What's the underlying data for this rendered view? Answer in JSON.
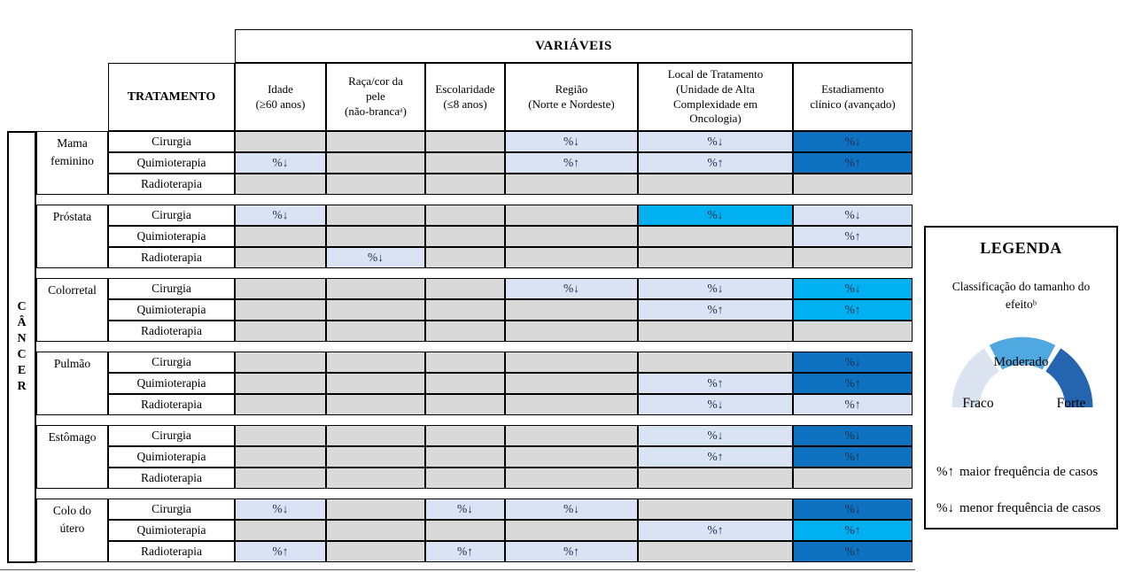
{
  "colors": {
    "cell_none": "#d9d9d9",
    "cell_fraco": "#dae3f3",
    "cell_moderado": "#00b0f0",
    "cell_forte": "#0e72c1",
    "arc_fraco": "#dbe3f0",
    "arc_moderado": "#4fa8e0",
    "arc_forte": "#2565b0",
    "symbol_text": "#1c2b4a"
  },
  "table": {
    "axis_label": "CÂNCER",
    "variables_header": "VARIÁVEIS",
    "treatment_header": "TRATAMENTO",
    "columns": [
      {
        "key": "idade",
        "lines": [
          "Idade",
          "(≥60 anos)"
        ]
      },
      {
        "key": "raca-cor-da-pele",
        "lines": [
          "Raça/cor da",
          "pele",
          "(não-brancaᵃ)"
        ]
      },
      {
        "key": "escolaridade",
        "lines": [
          "Escolaridade",
          "(≤8 anos)"
        ]
      },
      {
        "key": "regiao",
        "lines": [
          "Região",
          "(Norte e Nordeste)"
        ]
      },
      {
        "key": "local-de-tratamento",
        "lines": [
          "Local de Tratamento",
          "(Unidade de Alta",
          "Complexidade em",
          "Oncologia)"
        ]
      },
      {
        "key": "estadiamento",
        "lines": [
          "Estadiamento",
          "clínico (avançado)"
        ]
      }
    ],
    "groups": [
      {
        "key": "mama-feminino",
        "cancer": "Mama feminino",
        "rows": [
          {
            "key": "cirurgia",
            "treatment": "Cirurgia",
            "cells": [
              {
                "t": "",
                "s": "none"
              },
              {
                "t": "",
                "s": "none"
              },
              {
                "t": "",
                "s": "none"
              },
              {
                "t": "%↓",
                "s": "fraco"
              },
              {
                "t": "%↓",
                "s": "fraco"
              },
              {
                "t": "%↓",
                "s": "forte"
              }
            ]
          },
          {
            "key": "quimioterapia",
            "treatment": "Quimioterapia",
            "cells": [
              {
                "t": "%↓",
                "s": "fraco"
              },
              {
                "t": "",
                "s": "none"
              },
              {
                "t": "",
                "s": "none"
              },
              {
                "t": "%↑",
                "s": "fraco"
              },
              {
                "t": "%↑",
                "s": "fraco"
              },
              {
                "t": "%↑",
                "s": "forte"
              }
            ]
          },
          {
            "key": "radioterapia",
            "treatment": "Radioterapia",
            "cells": [
              {
                "t": "",
                "s": "none"
              },
              {
                "t": "",
                "s": "none"
              },
              {
                "t": "",
                "s": "none"
              },
              {
                "t": "",
                "s": "none"
              },
              {
                "t": "",
                "s": "none"
              },
              {
                "t": "",
                "s": "none"
              }
            ]
          }
        ]
      },
      {
        "key": "prostata",
        "cancer": "Próstata",
        "rows": [
          {
            "key": "cirurgia",
            "treatment": "Cirurgia",
            "cells": [
              {
                "t": "%↓",
                "s": "fraco"
              },
              {
                "t": "",
                "s": "none"
              },
              {
                "t": "",
                "s": "none"
              },
              {
                "t": "",
                "s": "none"
              },
              {
                "t": "%↓",
                "s": "moderado"
              },
              {
                "t": "%↓",
                "s": "fraco"
              }
            ]
          },
          {
            "key": "quimioterapia",
            "treatment": "Quimioterapia",
            "cells": [
              {
                "t": "",
                "s": "none"
              },
              {
                "t": "",
                "s": "none"
              },
              {
                "t": "",
                "s": "none"
              },
              {
                "t": "",
                "s": "none"
              },
              {
                "t": "",
                "s": "none"
              },
              {
                "t": "%↑",
                "s": "fraco"
              }
            ]
          },
          {
            "key": "radioterapia",
            "treatment": "Radioterapia",
            "cells": [
              {
                "t": "",
                "s": "none"
              },
              {
                "t": "%↓",
                "s": "fraco"
              },
              {
                "t": "",
                "s": "none"
              },
              {
                "t": "",
                "s": "none"
              },
              {
                "t": "",
                "s": "none"
              },
              {
                "t": "",
                "s": "none"
              }
            ]
          }
        ]
      },
      {
        "key": "colorretal",
        "cancer": "Colorretal",
        "rows": [
          {
            "key": "cirurgia",
            "treatment": "Cirurgia",
            "cells": [
              {
                "t": "",
                "s": "none"
              },
              {
                "t": "",
                "s": "none"
              },
              {
                "t": "",
                "s": "none"
              },
              {
                "t": "%↓",
                "s": "fraco"
              },
              {
                "t": "%↓",
                "s": "fraco"
              },
              {
                "t": "%↓",
                "s": "moderado"
              }
            ]
          },
          {
            "key": "quimioterapia",
            "treatment": "Quimioterapia",
            "cells": [
              {
                "t": "",
                "s": "none"
              },
              {
                "t": "",
                "s": "none"
              },
              {
                "t": "",
                "s": "none"
              },
              {
                "t": "",
                "s": "none"
              },
              {
                "t": "%↑",
                "s": "fraco"
              },
              {
                "t": "%↑",
                "s": "moderado"
              }
            ]
          },
          {
            "key": "radioterapia",
            "treatment": "Radioterapia",
            "cells": [
              {
                "t": "",
                "s": "none"
              },
              {
                "t": "",
                "s": "none"
              },
              {
                "t": "",
                "s": "none"
              },
              {
                "t": "",
                "s": "none"
              },
              {
                "t": "",
                "s": "none"
              },
              {
                "t": "",
                "s": "none"
              }
            ]
          }
        ]
      },
      {
        "key": "pulmao",
        "cancer": "Pulmão",
        "rows": [
          {
            "key": "cirurgia",
            "treatment": "Cirurgia",
            "cells": [
              {
                "t": "",
                "s": "none"
              },
              {
                "t": "",
                "s": "none"
              },
              {
                "t": "",
                "s": "none"
              },
              {
                "t": "",
                "s": "none"
              },
              {
                "t": "",
                "s": "none"
              },
              {
                "t": "%↓",
                "s": "forte"
              }
            ]
          },
          {
            "key": "quimioterapia",
            "treatment": "Quimioterapia",
            "cells": [
              {
                "t": "",
                "s": "none"
              },
              {
                "t": "",
                "s": "none"
              },
              {
                "t": "",
                "s": "none"
              },
              {
                "t": "",
                "s": "none"
              },
              {
                "t": "%↑",
                "s": "fraco"
              },
              {
                "t": "%↑",
                "s": "forte"
              }
            ]
          },
          {
            "key": "radioterapia",
            "treatment": "Radioterapia",
            "cells": [
              {
                "t": "",
                "s": "none"
              },
              {
                "t": "",
                "s": "none"
              },
              {
                "t": "",
                "s": "none"
              },
              {
                "t": "",
                "s": "none"
              },
              {
                "t": "%↓",
                "s": "fraco"
              },
              {
                "t": "%↑",
                "s": "fraco"
              }
            ]
          }
        ]
      },
      {
        "key": "estomago",
        "cancer": "Estômago",
        "rows": [
          {
            "key": "cirurgia",
            "treatment": "Cirurgia",
            "cells": [
              {
                "t": "",
                "s": "none"
              },
              {
                "t": "",
                "s": "none"
              },
              {
                "t": "",
                "s": "none"
              },
              {
                "t": "",
                "s": "none"
              },
              {
                "t": "%↓",
                "s": "fraco"
              },
              {
                "t": "%↓",
                "s": "forte"
              }
            ]
          },
          {
            "key": "quimioterapia",
            "treatment": "Quimioterapia",
            "cells": [
              {
                "t": "",
                "s": "none"
              },
              {
                "t": "",
                "s": "none"
              },
              {
                "t": "",
                "s": "none"
              },
              {
                "t": "",
                "s": "none"
              },
              {
                "t": "%↑",
                "s": "fraco"
              },
              {
                "t": "%↑",
                "s": "forte"
              }
            ]
          },
          {
            "key": "radioterapia",
            "treatment": "Radioterapia",
            "cells": [
              {
                "t": "",
                "s": "none"
              },
              {
                "t": "",
                "s": "none"
              },
              {
                "t": "",
                "s": "none"
              },
              {
                "t": "",
                "s": "none"
              },
              {
                "t": "",
                "s": "none"
              },
              {
                "t": "",
                "s": "none"
              }
            ]
          }
        ]
      },
      {
        "key": "colo-do-utero",
        "cancer": "Colo do útero",
        "rows": [
          {
            "key": "cirurgia",
            "treatment": "Cirurgia",
            "cells": [
              {
                "t": "%↓",
                "s": "fraco"
              },
              {
                "t": "",
                "s": "none"
              },
              {
                "t": "%↓",
                "s": "fraco"
              },
              {
                "t": "%↓",
                "s": "fraco"
              },
              {
                "t": "",
                "s": "none"
              },
              {
                "t": "%↓",
                "s": "forte"
              }
            ]
          },
          {
            "key": "quimioterapia",
            "treatment": "Quimioterapia",
            "cells": [
              {
                "t": "",
                "s": "none"
              },
              {
                "t": "",
                "s": "none"
              },
              {
                "t": "",
                "s": "none"
              },
              {
                "t": "",
                "s": "none"
              },
              {
                "t": "%↑",
                "s": "fraco"
              },
              {
                "t": "%↑",
                "s": "moderado"
              }
            ]
          },
          {
            "key": "radioterapia",
            "treatment": "Radioterapia",
            "cells": [
              {
                "t": "%↑",
                "s": "fraco"
              },
              {
                "t": "",
                "s": "none"
              },
              {
                "t": "%↑",
                "s": "fraco"
              },
              {
                "t": "%↑",
                "s": "fraco"
              },
              {
                "t": "",
                "s": "none"
              },
              {
                "t": "%↑",
                "s": "forte"
              }
            ]
          }
        ]
      }
    ]
  },
  "legend": {
    "title": "LEGENDA",
    "subtitle_line1": "Classificação do tamanho do",
    "subtitle_line2": "efeitoᵇ",
    "gauge": {
      "weak": "Fraco",
      "moderate": "Moderado",
      "strong": "Forte"
    },
    "note_up_symbol": "%↑",
    "note_up_text": "maior frequência de casos",
    "note_down_symbol": "%↓",
    "note_down_text": "menor frequência de casos"
  }
}
